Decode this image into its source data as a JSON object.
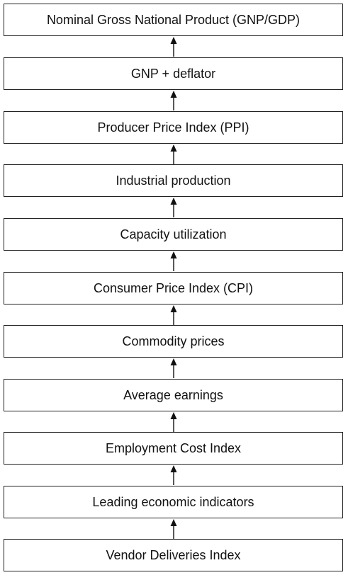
{
  "diagram": {
    "type": "flowchart",
    "direction": "bottom-to-top",
    "nodes": [
      "Nominal Gross National Product (GNP/GDP)",
      "GNP + deflator",
      "Producer Price Index (PPI)",
      "Industrial production",
      "Capacity utilization",
      "Consumer Price Index (CPI)",
      "Commodity prices",
      "Average earnings",
      "Employment Cost Index",
      "Leading economic indicators",
      "Vendor Deliveries Index"
    ]
  },
  "colors": {
    "border": "#222222",
    "text": "#111111",
    "arrow": "#111111"
  }
}
